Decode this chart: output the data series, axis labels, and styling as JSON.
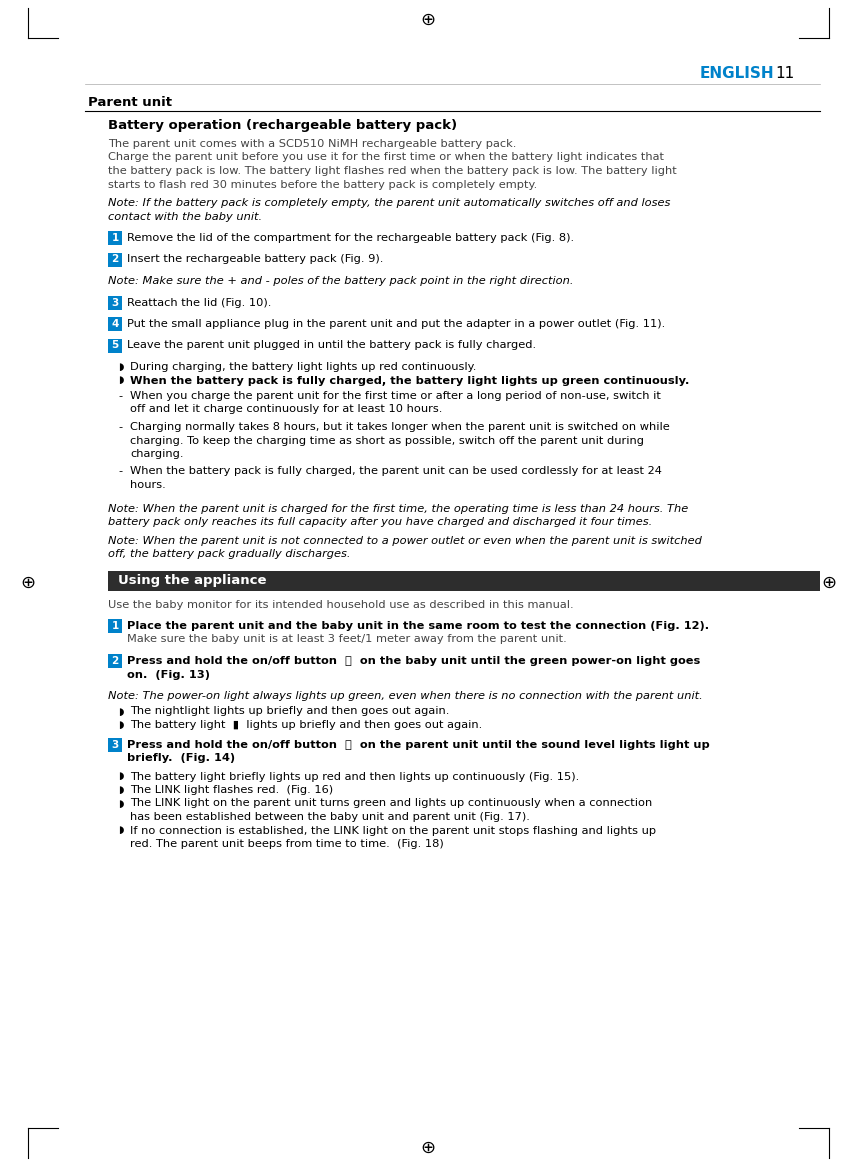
{
  "bg_color": "#ffffff",
  "text_color": "#000000",
  "blue_color": "#0082CA",
  "dark_header_color": "#2d2d2d",
  "badge_color": "#0082CA",
  "header_english": "ENGLISH",
  "header_page": "11",
  "section1_title": "Parent unit",
  "section2_title": "Battery operation (rechargeable battery pack)",
  "body_line1": "The parent unit comes with a SCD510 NiMH rechargeable battery pack.",
  "body_line2": "Charge the parent unit before you use it for the first time or when the battery light indicates that",
  "body_line3": "the battery pack is low. The battery light flashes red when the battery pack is low. The battery light",
  "body_line4": "starts to flash red 30 minutes before the battery pack is completely empty.",
  "note1_line1": "Note: If the battery pack is completely empty, the parent unit automatically switches off and loses",
  "note1_line2": "contact with the baby unit.",
  "step1_text": "Remove the lid of the compartment for the rechargeable battery pack (Fig. 8).",
  "step2_text": "Insert the rechargeable battery pack (Fig. 9).",
  "note2": "Note: Make sure the + and - poles of the battery pack point in the right direction.",
  "step3_text": "Reattach the lid (Fig. 10).",
  "step4_text": "Put the small appliance plug in the parent unit and put the adapter in a power outlet (Fig. 11).",
  "step5_text": "Leave the parent unit plugged in until the battery pack is fully charged.",
  "bullet1": "During charging, the battery light lights up red continuously.",
  "bullet2": "When the battery pack is fully charged, the battery light lights up green continuously.",
  "dash1_line1": "When you charge the parent unit for the first time or after a long period of non-use, switch it",
  "dash1_line2": "off and let it charge continuously for at least 10 hours.",
  "dash2_line1": "Charging normally takes 8 hours, but it takes longer when the parent unit is switched on while",
  "dash2_line2": "charging. To keep the charging time as short as possible, switch off the parent unit during",
  "dash2_line3": "charging.",
  "dash3_line1": "When the battery pack is fully charged, the parent unit can be used cordlessly for at least 24",
  "dash3_line2": "hours.",
  "note3_line1": "Note: When the parent unit is charged for the first time, the operating time is less than 24 hours. The",
  "note3_line2": "battery pack only reaches its full capacity after you have charged and discharged it four times.",
  "note4_line1": "Note: When the parent unit is not connected to a power outlet or even when the parent unit is switched",
  "note4_line2": "off, the battery pack gradually discharges.",
  "section3_title": "Using the appliance",
  "section3_body": "Use the baby monitor for its intended household use as described in this manual.",
  "ustep1_line1": "Place the parent unit and the baby unit in the same room to test the connection (Fig. 12).",
  "ustep1_line2": "Make sure the baby unit is at least 3 feet/1 meter away from the parent unit.",
  "ustep2_line1": "Press and hold the on/off button  ⏻  on the baby unit until the green power-on light goes",
  "ustep2_line2": "on.  (Fig. 13)",
  "note5": "Note: The power-on light always lights up green, even when there is no connection with the parent unit.",
  "ubullet1": "The nightlight lights up briefly and then goes out again.",
  "ubullet2": "The battery light  ▮  lights up briefly and then goes out again.",
  "ustep3_line1": "Press and hold the on/off button  ⏻  on the parent unit until the sound level lights light up",
  "ustep3_line2": "briefly.  (Fig. 14)",
  "ubullet3": "The battery light briefly lights up red and then lights up continuously (Fig. 15).",
  "ubullet4": "The LINK light flashes red.  (Fig. 16)",
  "ubullet5_line1": "The LINK light on the parent unit turns green and lights up continuously when a connection",
  "ubullet5_line2": "has been established between the baby unit and parent unit (Fig. 17).",
  "ubullet6_line1": "If no connection is established, the LINK light on the parent unit stops flashing and lights up",
  "ubullet6_line2": "red. The parent unit beeps from time to time.  (Fig. 18)"
}
